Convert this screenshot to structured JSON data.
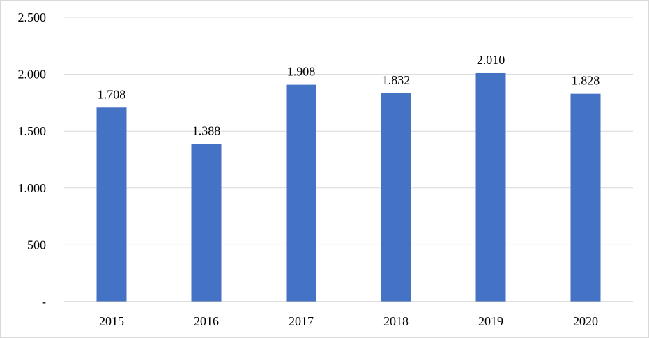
{
  "chart_data": {
    "type": "bar",
    "categories": [
      "2015",
      "2016",
      "2017",
      "2018",
      "2019",
      "2020"
    ],
    "values": [
      1708,
      1388,
      1908,
      1832,
      2010,
      1828
    ],
    "data_labels": [
      "1.708",
      "1.388",
      "1.908",
      "1.832",
      "2.010",
      "1.828"
    ],
    "title": "",
    "xlabel": "",
    "ylabel": "",
    "ylim": [
      0,
      2500
    ],
    "yticks": [
      0,
      500,
      1000,
      1500,
      2000,
      2500
    ],
    "ytick_labels": [
      "-",
      "500",
      "1.000",
      "1.500",
      "2.000",
      "2.500"
    ],
    "grid": true,
    "legend": "none",
    "colors": {
      "bar": "#4472c4",
      "grid": "#d9d9d9",
      "axis": "#bfbfbf",
      "text": "#000000"
    }
  }
}
